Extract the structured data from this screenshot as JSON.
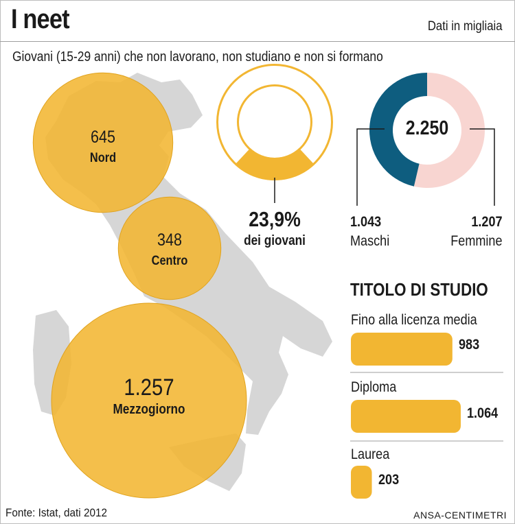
{
  "header": {
    "title": "I neet",
    "unit_note": "Dati in migliaia",
    "subtitle": "Giovani (15-29 anni) che non lavorano, non studiano e non si formano"
  },
  "colors": {
    "accent": "#f2b632",
    "accent_line": "#e0a21c",
    "map_gray": "#d6d6d6",
    "male": "#0e5d7f",
    "female": "#f8d5d1",
    "rule": "#9e9e9e"
  },
  "chart_data": [
    {
      "type": "bubble",
      "series_name": "Aree",
      "items": [
        {
          "name": "Nord",
          "value": 645,
          "value_label": "645"
        },
        {
          "name": "Centro",
          "value": 348,
          "value_label": "348"
        },
        {
          "name": "Mezzogiorno",
          "value": 1257,
          "value_label": "1.257"
        }
      ]
    },
    {
      "type": "ring",
      "value": 23.9,
      "unit": "%",
      "label_value": "23,9%",
      "label_text": "dei giovani"
    },
    {
      "type": "pie",
      "total": 2250,
      "total_label": "2.250",
      "slices": [
        {
          "name": "Maschi",
          "value": 1043,
          "value_label": "1.043",
          "color": "#0e5d7f"
        },
        {
          "name": "Femmine",
          "value": 1207,
          "value_label": "1.207",
          "color": "#f8d5d1"
        }
      ]
    },
    {
      "type": "bar",
      "title": "TITOLO DI STUDIO",
      "orientation": "horizontal",
      "categories": [
        "Fino alla licenza media",
        "Diploma",
        "Laurea"
      ],
      "values": [
        983,
        1064,
        203
      ],
      "value_labels": [
        "983",
        "1.064",
        "203"
      ]
    }
  ],
  "footer": {
    "source": "Fonte: Istat, dati 2012",
    "credit": "ANSA-CENTIMETRI"
  }
}
